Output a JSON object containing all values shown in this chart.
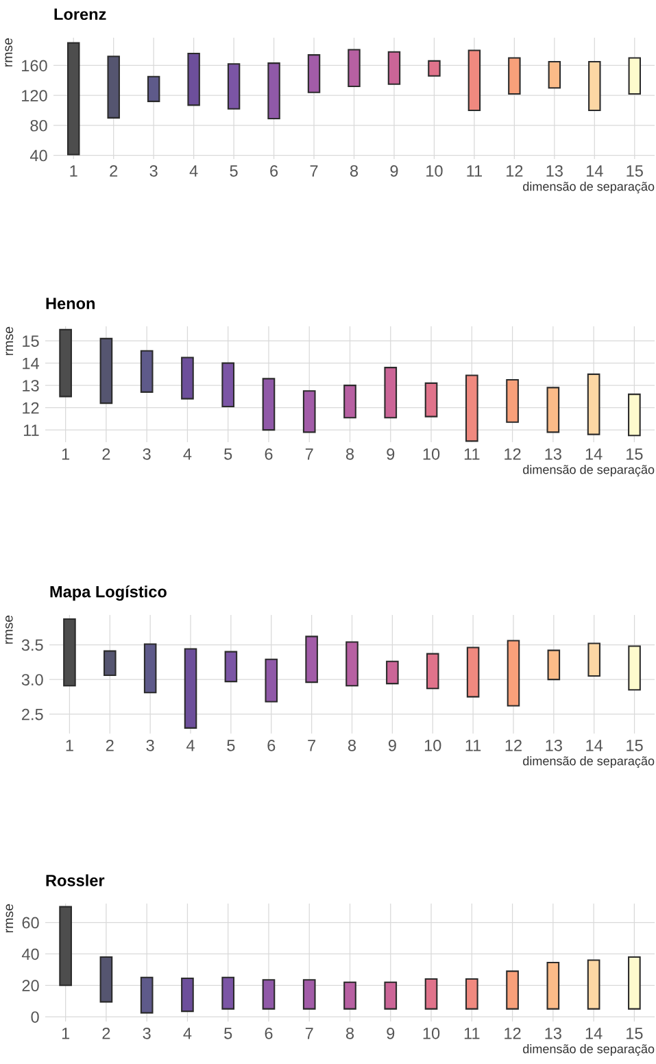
{
  "chart_data": [
    {
      "type": "bar",
      "title": "Lorenz",
      "xlabel": "dimensão de separação",
      "ylabel": "rmse",
      "categories": [
        "1",
        "2",
        "3",
        "4",
        "5",
        "6",
        "7",
        "8",
        "9",
        "10",
        "11",
        "12",
        "13",
        "14",
        "15"
      ],
      "base": [
        41,
        90,
        112,
        107,
        102,
        89,
        124,
        132,
        135,
        146,
        100,
        122,
        130,
        100,
        122
      ],
      "values": [
        149,
        82,
        33,
        69,
        60,
        74,
        50,
        49,
        43,
        20,
        80,
        48,
        35,
        65,
        48
      ],
      "colors": [
        "#4d4d4d",
        "#555570",
        "#5e5a8a",
        "#6d4f9b",
        "#7b55a5",
        "#9059a8",
        "#a25ca8",
        "#b760a2",
        "#cb6597",
        "#e0738b",
        "#f0897f",
        "#f8a07a",
        "#fbbb88",
        "#fcd7a4",
        "#fdfacd"
      ],
      "ylim": [
        35,
        197
      ],
      "yticks": [
        40,
        80,
        120,
        160
      ],
      "grid": true
    },
    {
      "type": "bar",
      "title": "Henon",
      "xlabel": "dimensão de separação",
      "ylabel": "rmse",
      "categories": [
        "1",
        "2",
        "3",
        "4",
        "5",
        "6",
        "7",
        "8",
        "9",
        "10",
        "11",
        "12",
        "13",
        "14",
        "15"
      ],
      "base": [
        12.5,
        12.2,
        12.7,
        12.4,
        12.05,
        11.0,
        10.9,
        11.55,
        11.55,
        11.6,
        10.5,
        11.35,
        10.9,
        10.8,
        10.75
      ],
      "values": [
        3.0,
        2.9,
        1.85,
        1.85,
        1.95,
        2.3,
        1.85,
        1.45,
        2.25,
        1.5,
        2.95,
        1.9,
        2.0,
        2.7,
        1.85
      ],
      "colors": [
        "#4d4d4d",
        "#555570",
        "#5e5a8a",
        "#6d4f9b",
        "#7b55a5",
        "#9059a8",
        "#a25ca8",
        "#b760a2",
        "#cb6597",
        "#e0738b",
        "#f0897f",
        "#f8a07a",
        "#fbbb88",
        "#fcd7a4",
        "#fdfacd"
      ],
      "ylim": [
        10.45,
        15.65
      ],
      "yticks": [
        11,
        12,
        13,
        14,
        15
      ],
      "grid": true
    },
    {
      "type": "bar",
      "title": "Mapa Logístico",
      "xlabel": "dimensão de separação",
      "ylabel": "rmse",
      "categories": [
        "1",
        "2",
        "3",
        "4",
        "5",
        "6",
        "7",
        "8",
        "9",
        "10",
        "11",
        "12",
        "13",
        "14",
        "15"
      ],
      "base": [
        2.91,
        3.06,
        2.81,
        2.3,
        2.97,
        2.68,
        2.96,
        2.91,
        2.94,
        2.87,
        2.75,
        2.62,
        3.0,
        3.05,
        2.85
      ],
      "values": [
        0.96,
        0.35,
        0.7,
        1.14,
        0.43,
        0.61,
        0.66,
        0.63,
        0.32,
        0.5,
        0.71,
        0.94,
        0.42,
        0.47,
        0.63
      ],
      "colors": [
        "#4d4d4d",
        "#555570",
        "#5e5a8a",
        "#6d4f9b",
        "#7b55a5",
        "#9059a8",
        "#a25ca8",
        "#b760a2",
        "#cb6597",
        "#e0738b",
        "#f0897f",
        "#f8a07a",
        "#fbbb88",
        "#fcd7a4",
        "#fdfacd"
      ],
      "ylim": [
        2.22,
        3.93
      ],
      "yticks": [
        {
          "value": 2.5,
          "label": "2.5"
        },
        {
          "value": 3.0,
          "label": "3.0"
        },
        {
          "value": 3.5,
          "label": "3.5"
        }
      ],
      "grid": true
    },
    {
      "type": "bar",
      "title": "Rossler",
      "xlabel": "dimensão de separação",
      "ylabel": "rmse",
      "categories": [
        "1",
        "2",
        "3",
        "4",
        "5",
        "6",
        "7",
        "8",
        "9",
        "10",
        "11",
        "12",
        "13",
        "14",
        "15"
      ],
      "base": [
        20,
        9.5,
        2.5,
        3.5,
        5,
        5,
        5,
        5,
        5,
        5,
        5,
        5,
        5,
        5,
        5
      ],
      "values": [
        50,
        28.5,
        22.5,
        21,
        20,
        18.5,
        18.5,
        17,
        17,
        19,
        19,
        24,
        29.5,
        31,
        33
      ],
      "colors": [
        "#4d4d4d",
        "#555570",
        "#5e5a8a",
        "#6d4f9b",
        "#7b55a5",
        "#9059a8",
        "#a25ca8",
        "#b760a2",
        "#cb6597",
        "#e0738b",
        "#f0897f",
        "#f8a07a",
        "#fbbb88",
        "#fcd7a4",
        "#fdfacd"
      ],
      "ylim": [
        -3,
        72
      ],
      "yticks": [
        0,
        20,
        40,
        60
      ],
      "grid": true
    }
  ]
}
